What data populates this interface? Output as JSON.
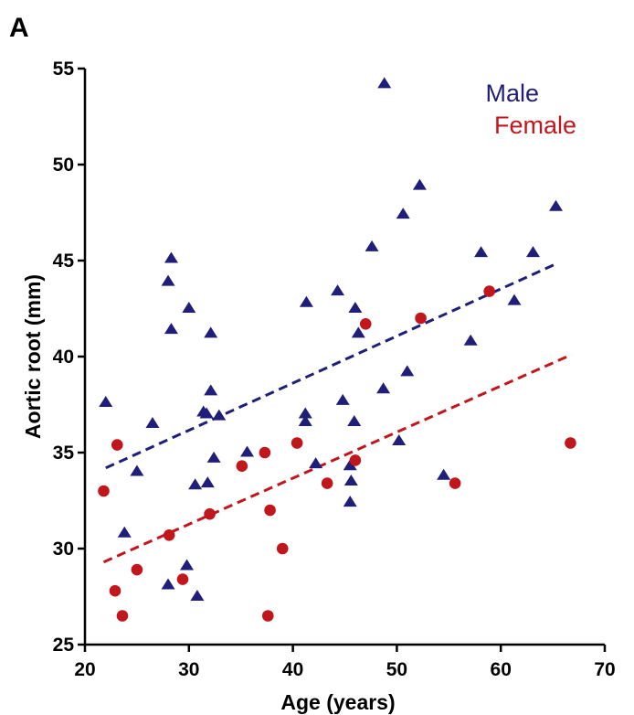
{
  "chart_data": {
    "type": "scatter",
    "panel_label": "A",
    "xlabel": "Age (years)",
    "ylabel": "Aortic root (mm)",
    "xlim": [
      20,
      70
    ],
    "ylim": [
      25,
      55
    ],
    "xticks": [
      20,
      30,
      40,
      50,
      60,
      70
    ],
    "yticks": [
      25,
      30,
      35,
      40,
      45,
      50,
      55
    ],
    "legend_position": "top-right",
    "series": [
      {
        "name": "Male",
        "marker": "triangle",
        "color": "#1f1f7a",
        "trendline": {
          "style": "dashed",
          "x": [
            22,
            65.2
          ],
          "y": [
            34.2,
            44.8
          ]
        },
        "points": [
          [
            22,
            37.6
          ],
          [
            23.8,
            30.8
          ],
          [
            25,
            34
          ],
          [
            26.5,
            36.5
          ],
          [
            28,
            43.9
          ],
          [
            28.3,
            45.1
          ],
          [
            28.3,
            41.4
          ],
          [
            28,
            28.1
          ],
          [
            29.8,
            29.1
          ],
          [
            30,
            42.5
          ],
          [
            30.6,
            33.3
          ],
          [
            30.8,
            27.5
          ],
          [
            31.4,
            37.1
          ],
          [
            31.7,
            37
          ],
          [
            31.8,
            33.4
          ],
          [
            32.1,
            38.2
          ],
          [
            32.1,
            41.2
          ],
          [
            32.4,
            34.7
          ],
          [
            32.9,
            36.9
          ],
          [
            35.6,
            35
          ],
          [
            41.3,
            42.8
          ],
          [
            41.2,
            37
          ],
          [
            41.2,
            36.6
          ],
          [
            42.2,
            34.4
          ],
          [
            44.3,
            43.4
          ],
          [
            44.8,
            37.7
          ],
          [
            45.5,
            34.3
          ],
          [
            45.6,
            33.5
          ],
          [
            45.5,
            32.4
          ],
          [
            46,
            42.5
          ],
          [
            45.9,
            36.6
          ],
          [
            46.3,
            41.2
          ],
          [
            47.6,
            45.7
          ],
          [
            48.7,
            38.3
          ],
          [
            48.8,
            54.2
          ],
          [
            50.2,
            35.6
          ],
          [
            50.6,
            47.4
          ],
          [
            51,
            39.2
          ],
          [
            52.2,
            48.9
          ],
          [
            54.5,
            33.8
          ],
          [
            57.1,
            40.8
          ],
          [
            58.1,
            45.4
          ],
          [
            61.3,
            42.9
          ],
          [
            63.1,
            45.4
          ],
          [
            65.3,
            47.8
          ]
        ]
      },
      {
        "name": "Female",
        "marker": "circle",
        "color": "#c0161c",
        "trendline": {
          "style": "dashed",
          "x": [
            21.8,
            66.8
          ],
          "y": [
            29.3,
            40.1
          ]
        },
        "points": [
          [
            21.8,
            33
          ],
          [
            22.9,
            27.8
          ],
          [
            23.1,
            35.4
          ],
          [
            23.6,
            26.5
          ],
          [
            25,
            28.9
          ],
          [
            28.1,
            30.7
          ],
          [
            29.4,
            28.4
          ],
          [
            32,
            31.8
          ],
          [
            35.1,
            34.3
          ],
          [
            37.3,
            35
          ],
          [
            37.6,
            26.5
          ],
          [
            37.8,
            32
          ],
          [
            39,
            30
          ],
          [
            40.4,
            35.5
          ],
          [
            43.3,
            33.4
          ],
          [
            46,
            34.6
          ],
          [
            47,
            41.7
          ],
          [
            52.3,
            42
          ],
          [
            55.6,
            33.4
          ],
          [
            58.9,
            43.4
          ],
          [
            66.7,
            35.5
          ]
        ]
      }
    ]
  }
}
